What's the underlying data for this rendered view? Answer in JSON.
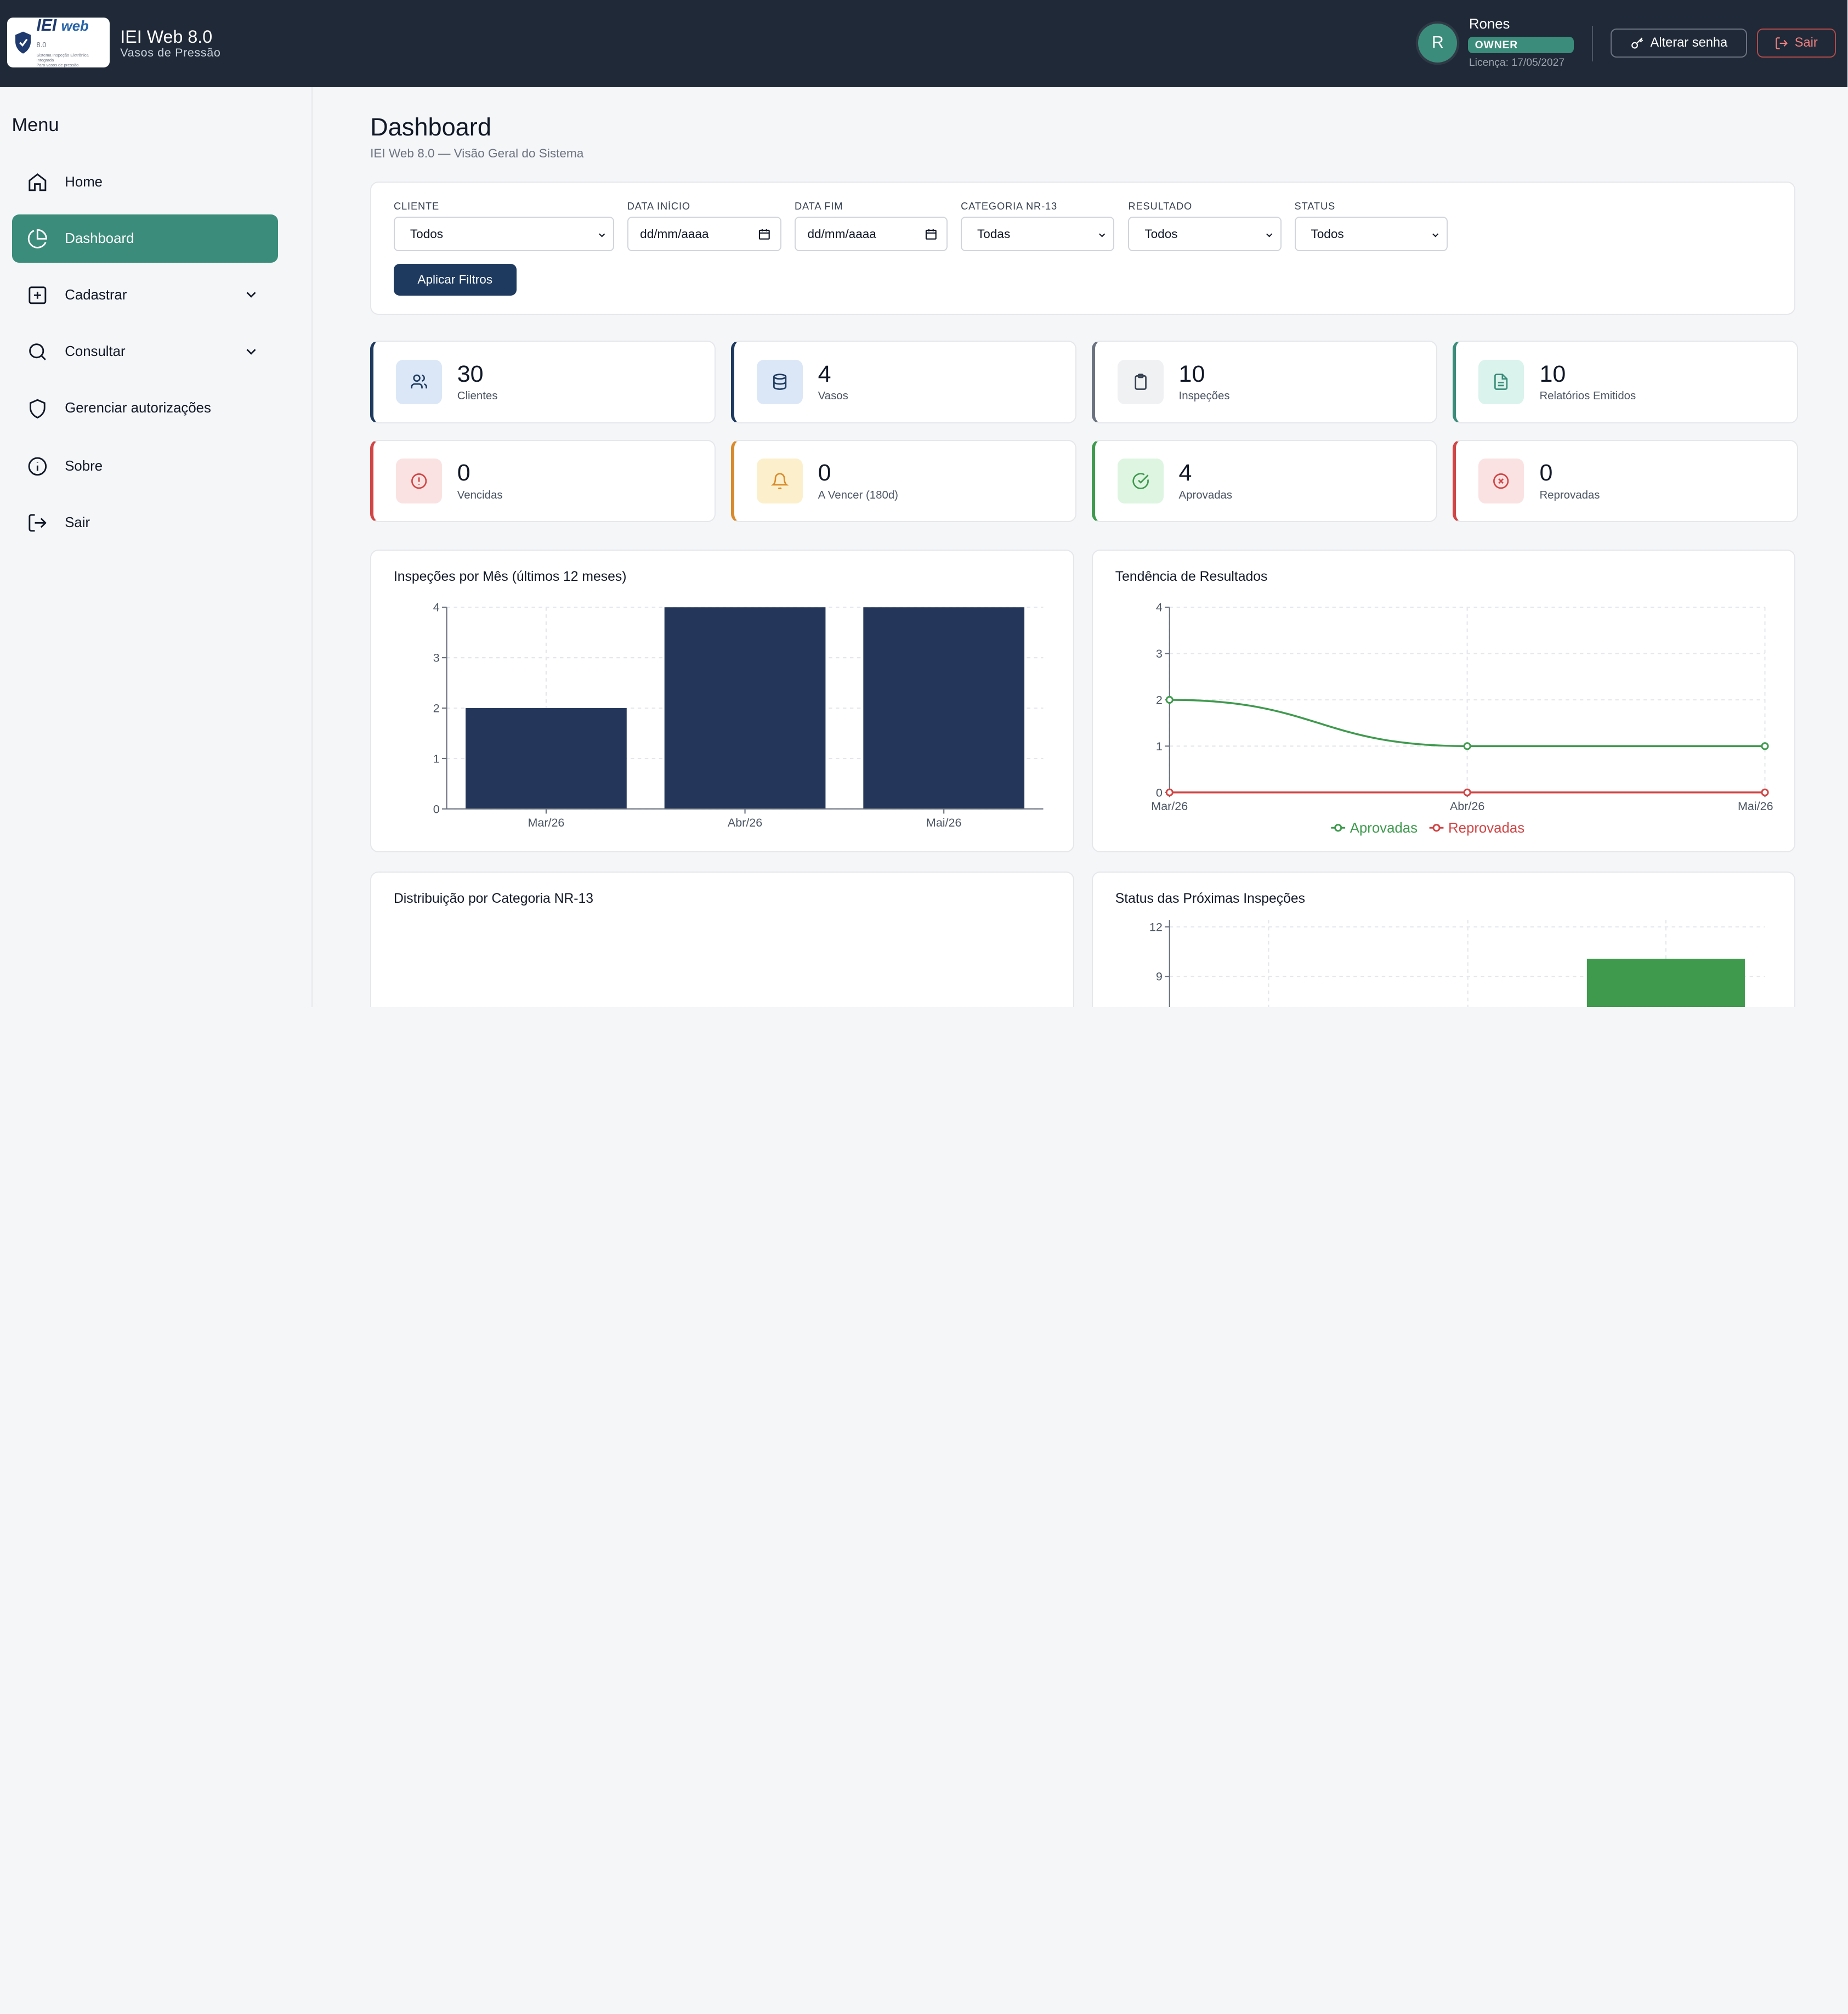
{
  "app": {
    "title": "IEI Web 8.0",
    "subtitle": "Vasos de Pressão",
    "logo_text": "IEI web 8.0",
    "logo_tagline": "Sistema Inspeção Eletrônica Integrada Para vasos de pressão"
  },
  "user": {
    "initial": "R",
    "name": "Rones",
    "role": "OWNER",
    "license": "Licença: 17/05/2027"
  },
  "header": {
    "change_password": "Alterar senha",
    "logout": "Sair"
  },
  "sidebar": {
    "title": "Menu",
    "items": [
      {
        "label": "Home",
        "icon": "home-icon"
      },
      {
        "label": "Dashboard",
        "icon": "pie-chart-icon",
        "active": true
      },
      {
        "label": "Cadastrar",
        "icon": "plus-square-icon",
        "expandable": true
      },
      {
        "label": "Consultar",
        "icon": "search-icon",
        "expandable": true
      },
      {
        "label": "Gerenciar autorizações",
        "icon": "shield-icon"
      },
      {
        "label": "Sobre",
        "icon": "info-icon"
      },
      {
        "label": "Sair",
        "icon": "logout-icon"
      }
    ]
  },
  "page": {
    "title": "Dashboard",
    "subtitle": "IEI Web 8.0 — Visão Geral do Sistema"
  },
  "filters": {
    "cliente": {
      "label": "CLIENTE",
      "value": "Todos"
    },
    "data_inicio": {
      "label": "DATA INÍCIO",
      "value": "dd/mm/aaaa"
    },
    "data_fim": {
      "label": "DATA FIM",
      "value": "dd/mm/aaaa"
    },
    "categoria": {
      "label": "CATEGORIA NR-13",
      "value": "Todas"
    },
    "resultado": {
      "label": "RESULTADO",
      "value": "Todos"
    },
    "status": {
      "label": "STATUS",
      "value": "Todos"
    },
    "apply_label": "Aplicar Filtros"
  },
  "stats": [
    {
      "value": "30",
      "label": "Clientes",
      "accent": "#1e3a5f",
      "icon_bg": "#dbe7f6",
      "icon_color": "#1e3a5f",
      "icon": "users-icon"
    },
    {
      "value": "4",
      "label": "Vasos",
      "accent": "#1e3a5f",
      "icon_bg": "#dbe7f6",
      "icon_color": "#1e3a5f",
      "icon": "database-icon"
    },
    {
      "value": "10",
      "label": "Inspeções",
      "accent": "#6b7280",
      "icon_bg": "#f0f1f3",
      "icon_color": "#374151",
      "icon": "clipboard-icon"
    },
    {
      "value": "10",
      "label": "Relatórios Emitidos",
      "accent": "#3b8c7a",
      "icon_bg": "#daf3ec",
      "icon_color": "#3b8c7a",
      "icon": "document-icon"
    },
    {
      "value": "0",
      "label": "Vencidas",
      "accent": "#d04545",
      "icon_bg": "#fbe2e2",
      "icon_color": "#d04545",
      "icon": "alert-circle-icon"
    },
    {
      "value": "0",
      "label": "A Vencer (180d)",
      "accent": "#d98a2b",
      "icon_bg": "#fcf0cc",
      "icon_color": "#d98a2b",
      "icon": "bell-icon"
    },
    {
      "value": "4",
      "label": "Aprovadas",
      "accent": "#3f9a4e",
      "icon_bg": "#def5e1",
      "icon_color": "#3f9a4e",
      "icon": "check-circle-icon"
    },
    {
      "value": "0",
      "label": "Reprovadas",
      "accent": "#d04545",
      "icon_bg": "#fbe2e2",
      "icon_color": "#d04545",
      "icon": "x-circle-icon"
    }
  ],
  "chart_data": [
    {
      "type": "bar",
      "title": "Inspeções por Mês (últimos 12 meses)",
      "categories": [
        "Mar/26",
        "Abr/26",
        "Mai/26"
      ],
      "values": [
        2,
        4,
        4
      ],
      "ylim": [
        0,
        4
      ],
      "yticks": [
        "0",
        "1",
        "2",
        "3",
        "4"
      ],
      "grid": true,
      "color": "#24375b"
    },
    {
      "type": "line",
      "title": "Tendência de Resultados",
      "categories": [
        "Mar/26",
        "Abr/26",
        "Mai/26"
      ],
      "ylim": [
        0,
        4
      ],
      "yticks": [
        "0",
        "1",
        "2",
        "3",
        "4"
      ],
      "grid": true,
      "legend": "bottom",
      "series": [
        {
          "name": "Aprovadas",
          "values": [
            2,
            1,
            1
          ],
          "color": "#3f9a4e"
        },
        {
          "name": "Reprovadas",
          "values": [
            0,
            0,
            0
          ],
          "color": "#d04545"
        }
      ]
    },
    {
      "type": "pie",
      "title": "Distribuição por Categoria NR-13"
    },
    {
      "type": "bar",
      "title": "Status das Próximas Inspeções",
      "yticks": [
        "9",
        "12"
      ],
      "color": "#3f9a4e"
    }
  ]
}
